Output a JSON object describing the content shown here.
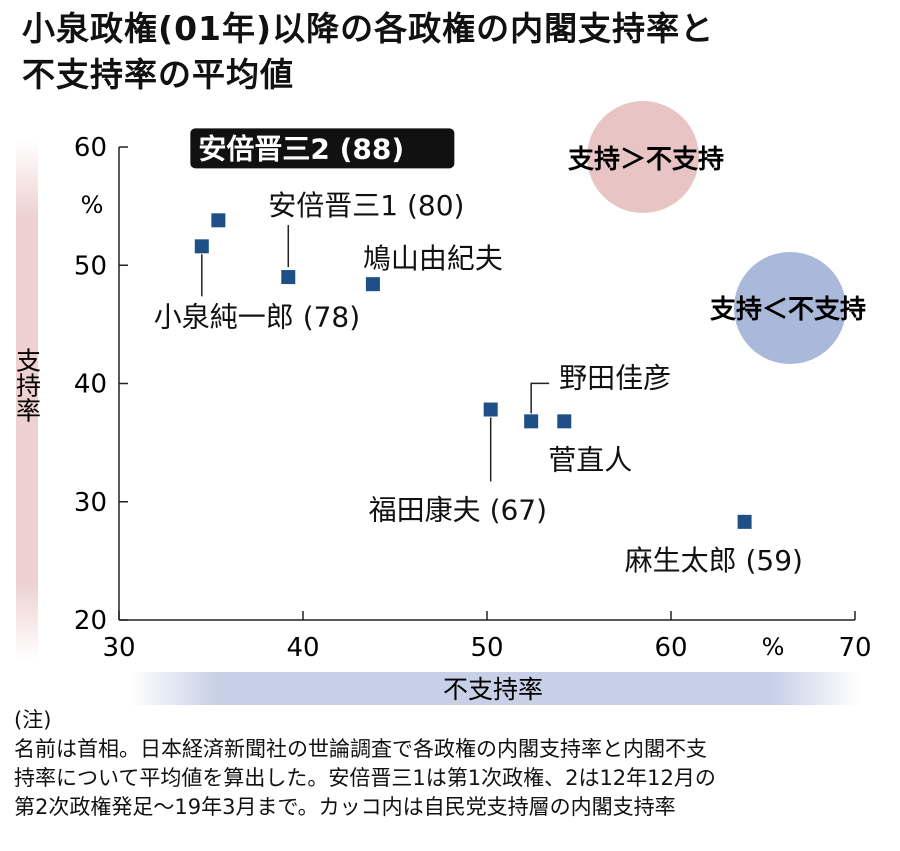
{
  "title_line1": "小泉政権(01年)以降の各政権の内閣支持率と",
  "title_line2": "不支持率の平均値",
  "legend": {
    "support_gt": "支持＞不支持",
    "support_lt": "支持＜不支持",
    "color_gt": "#e8c4c4",
    "color_lt": "#aab8d9"
  },
  "note_head": "(注)",
  "note_lines": [
    "名前は首相。日本経済新聞社の世論調査で各政権の内閣支持率と内閣不支",
    "持率について平均値を算出した。安倍晋三1は第1次政権、2は12年12月の",
    "第2次政権発足～19年3月まで。カッコ内は自民党支持層の内閣支持率"
  ],
  "chart_data": {
    "type": "scatter",
    "xlabel": "不支持率",
    "ylabel": "支持率",
    "x_unit": "%",
    "y_unit": "%",
    "xlim": [
      30,
      70
    ],
    "ylim": [
      20,
      60
    ],
    "xticks": [
      30,
      40,
      50,
      60,
      70
    ],
    "yticks": [
      20,
      30,
      40,
      50,
      60
    ],
    "marker_color": "#1e4f86",
    "points": [
      {
        "label": "小泉純一郎 (78)",
        "x": 34.5,
        "y": 51.6
      },
      {
        "label": "安倍晋三2 (88)",
        "x": 35.4,
        "y": 53.8,
        "highlight": true
      },
      {
        "label": "安倍晋三1 (80)",
        "x": 39.2,
        "y": 49.0
      },
      {
        "label": "鳩山由紀夫",
        "x": 43.8,
        "y": 48.4
      },
      {
        "label": "福田康夫 (67)",
        "x": 50.2,
        "y": 37.8
      },
      {
        "label": "野田佳彦",
        "x": 52.4,
        "y": 36.8
      },
      {
        "label": "菅直人",
        "x": 54.2,
        "y": 36.8
      },
      {
        "label": "麻生太郎 (59)",
        "x": 64.0,
        "y": 28.3
      }
    ]
  }
}
